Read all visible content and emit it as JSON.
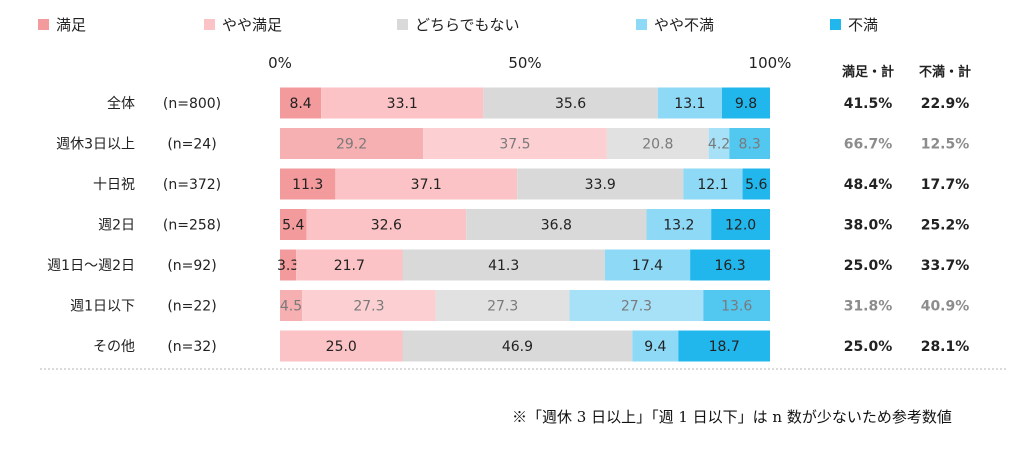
{
  "chart_data": {
    "type": "stacked-bar-horizontal",
    "xlim": [
      0,
      100
    ],
    "xticks": [
      "0%",
      "50%",
      "100%"
    ],
    "summary_headers": [
      "満足・計",
      "不満・計"
    ],
    "series": [
      {
        "name": "満足",
        "color": "#f39a9c"
      },
      {
        "name": "やや満足",
        "color": "#fbc3c5"
      },
      {
        "name": "どちらでもない",
        "color": "#d9d9d9"
      },
      {
        "name": "やや不満",
        "color": "#8ed9f6"
      },
      {
        "name": "不満",
        "color": "#21b7ec"
      }
    ],
    "categories": [
      {
        "label": "全体",
        "n": "(n=800)",
        "values": [
          8.4,
          33.1,
          35.6,
          13.1,
          9.8
        ],
        "labels": [
          "8.4",
          "33.1",
          "35.6",
          "13.1",
          "9.8"
        ],
        "sat": "41.5%",
        "dissat": "22.9%",
        "reference": false
      },
      {
        "label": "週休3日以上",
        "n": "(n=24)",
        "values": [
          29.2,
          37.5,
          20.8,
          4.2,
          8.3
        ],
        "labels": [
          "29.2",
          "37.5",
          "20.8",
          "4.2",
          "8.3"
        ],
        "sat": "66.7%",
        "dissat": "12.5%",
        "reference": true
      },
      {
        "label": "十日祝",
        "n": "(n=372)",
        "values": [
          11.3,
          37.1,
          33.9,
          12.1,
          5.6
        ],
        "labels": [
          "11.3",
          "37.1",
          "33.9",
          "12.1",
          "5.6"
        ],
        "sat": "48.4%",
        "dissat": "17.7%",
        "reference": false
      },
      {
        "label": "週2日",
        "n": "(n=258)",
        "values": [
          5.4,
          32.6,
          36.8,
          13.2,
          12.0
        ],
        "labels": [
          "5.4",
          "32.6",
          "36.8",
          "13.2",
          "12.0"
        ],
        "sat": "38.0%",
        "dissat": "25.2%",
        "reference": false
      },
      {
        "label": "週1日〜週2日",
        "n": "(n=92)",
        "values": [
          3.3,
          21.7,
          41.3,
          17.4,
          16.3
        ],
        "labels": [
          "3.3",
          "21.7",
          "41.3",
          "17.4",
          "16.3"
        ],
        "sat": "25.0%",
        "dissat": "33.7%",
        "reference": false
      },
      {
        "label": "週1日以下",
        "n": "(n=22)",
        "values": [
          4.5,
          27.3,
          27.3,
          27.3,
          13.6
        ],
        "labels": [
          "4.5",
          "27.3",
          "27.3",
          "27.3",
          "13.6"
        ],
        "sat": "31.8%",
        "dissat": "40.9%",
        "reference": true
      },
      {
        "label": "その他",
        "n": "(n=32)",
        "values": [
          0,
          25.0,
          46.9,
          9.4,
          18.7
        ],
        "labels": [
          "",
          "25.0",
          "46.9",
          "9.4",
          "18.7"
        ],
        "sat": "25.0%",
        "dissat": "28.1%",
        "reference": false
      }
    ],
    "footnote": "※「週休 3 日以上」「週 1 日以下」は n 数が少ないため参考数値"
  }
}
